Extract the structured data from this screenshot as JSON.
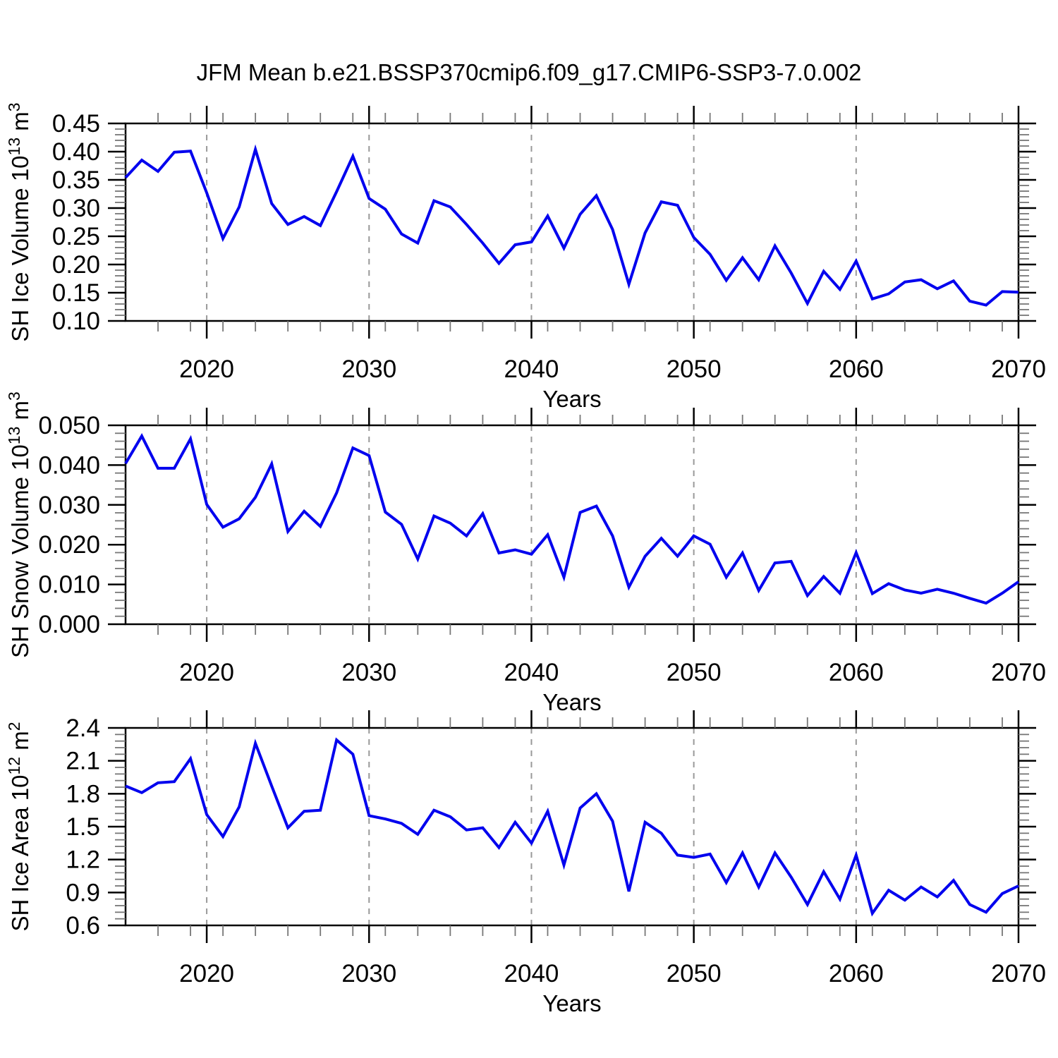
{
  "title": "JFM Mean b.e21.BSSP370cmip6.f09_g17.CMIP6-SSP3-7.0.002",
  "colors": {
    "line": "#0202ee",
    "axis": "#000000",
    "grid": "#999999",
    "minor_tick": "#777777",
    "text": "#000000",
    "background": "#ffffff"
  },
  "chart_data": [
    {
      "type": "line",
      "panel": "sh-ice-volume",
      "ylabel_parts": [
        {
          "text": "SH Ice Volume 10",
          "sup": false
        },
        {
          "text": "13",
          "sup": true
        },
        {
          "text": " m",
          "sup": false
        },
        {
          "text": "3",
          "sup": true
        }
      ],
      "xlabel": "Years",
      "xlim": [
        2015,
        2070
      ],
      "ylim": [
        0.1,
        0.45
      ],
      "xticks": [
        2020,
        2030,
        2040,
        2050,
        2060,
        2070
      ],
      "xtick_labels": [
        "2020",
        "2030",
        "2040",
        "2050",
        "2060",
        "2070"
      ],
      "minor_x_step": 2,
      "yticks": [
        0.45,
        0.4,
        0.35,
        0.3,
        0.25,
        0.2,
        0.15,
        0.1
      ],
      "ytick_labels": [
        "0.45",
        "0.40",
        "0.35",
        "0.30",
        "0.25",
        "0.20",
        "0.15",
        "0.10"
      ],
      "minor_y_step": 0.01,
      "grid_x": [
        2020,
        2030,
        2040,
        2050,
        2060
      ],
      "x": [
        2015,
        2016,
        2017,
        2018,
        2019,
        2020,
        2021,
        2022,
        2023,
        2024,
        2025,
        2026,
        2027,
        2028,
        2029,
        2030,
        2031,
        2032,
        2033,
        2034,
        2035,
        2036,
        2037,
        2038,
        2039,
        2040,
        2041,
        2042,
        2043,
        2044,
        2045,
        2046,
        2047,
        2048,
        2049,
        2050,
        2051,
        2052,
        2053,
        2054,
        2055,
        2056,
        2057,
        2058,
        2059,
        2060,
        2061,
        2062,
        2063,
        2064,
        2065,
        2066,
        2067,
        2068,
        2069,
        2070
      ],
      "values": [
        0.354,
        0.385,
        0.365,
        0.399,
        0.401,
        0.327,
        0.246,
        0.302,
        0.404,
        0.308,
        0.271,
        0.285,
        0.269,
        0.329,
        0.392,
        0.317,
        0.298,
        0.254,
        0.238,
        0.313,
        0.302,
        0.271,
        0.238,
        0.202,
        0.235,
        0.24,
        0.286,
        0.229,
        0.289,
        0.322,
        0.262,
        0.165,
        0.256,
        0.311,
        0.305,
        0.248,
        0.218,
        0.172,
        0.212,
        0.173,
        0.233,
        0.185,
        0.131,
        0.188,
        0.156,
        0.206,
        0.139,
        0.148,
        0.169,
        0.173,
        0.157,
        0.171,
        0.135,
        0.128,
        0.152,
        0.151
      ]
    },
    {
      "type": "line",
      "panel": "sh-snow-volume",
      "ylabel_parts": [
        {
          "text": "SH Snow Volume 10",
          "sup": false
        },
        {
          "text": "13",
          "sup": true
        },
        {
          "text": " m",
          "sup": false
        },
        {
          "text": "3",
          "sup": true
        }
      ],
      "xlabel": "Years",
      "xlim": [
        2015,
        2070
      ],
      "ylim": [
        0.0,
        0.05
      ],
      "xticks": [
        2020,
        2030,
        2040,
        2050,
        2060,
        2070
      ],
      "xtick_labels": [
        "2020",
        "2030",
        "2040",
        "2050",
        "2060",
        "2070"
      ],
      "minor_x_step": 2,
      "yticks": [
        0.05,
        0.04,
        0.03,
        0.02,
        0.01,
        0.0
      ],
      "ytick_labels": [
        "0.050",
        "0.040",
        "0.030",
        "0.020",
        "0.010",
        "0.000"
      ],
      "minor_y_step": 0.002,
      "grid_x": [
        2020,
        2030,
        2040,
        2050,
        2060
      ],
      "x": [
        2015,
        2016,
        2017,
        2018,
        2019,
        2020,
        2021,
        2022,
        2023,
        2024,
        2025,
        2026,
        2027,
        2028,
        2029,
        2030,
        2031,
        2032,
        2033,
        2034,
        2035,
        2036,
        2037,
        2038,
        2039,
        2040,
        2041,
        2042,
        2043,
        2044,
        2045,
        2046,
        2047,
        2048,
        2049,
        2050,
        2051,
        2052,
        2053,
        2054,
        2055,
        2056,
        2057,
        2058,
        2059,
        2060,
        2061,
        2062,
        2063,
        2064,
        2065,
        2066,
        2067,
        2068,
        2069,
        2070
      ],
      "values": [
        0.0404,
        0.0473,
        0.0392,
        0.0392,
        0.0466,
        0.0301,
        0.0244,
        0.0265,
        0.0319,
        0.0403,
        0.0233,
        0.0284,
        0.0246,
        0.033,
        0.0443,
        0.0424,
        0.0282,
        0.0251,
        0.0164,
        0.0272,
        0.0254,
        0.0222,
        0.0278,
        0.0179,
        0.0187,
        0.0176,
        0.0225,
        0.0118,
        0.0281,
        0.0297,
        0.0222,
        0.0093,
        0.0171,
        0.0216,
        0.0171,
        0.0222,
        0.0201,
        0.0118,
        0.0179,
        0.0085,
        0.0154,
        0.0158,
        0.0072,
        0.012,
        0.0078,
        0.018,
        0.0077,
        0.0102,
        0.0086,
        0.0078,
        0.0088,
        0.0078,
        0.0065,
        0.0053,
        0.0078,
        0.0107
      ]
    },
    {
      "type": "line",
      "panel": "sh-ice-area",
      "ylabel_parts": [
        {
          "text": "SH Ice Area 10",
          "sup": false
        },
        {
          "text": "12",
          "sup": true
        },
        {
          "text": " m",
          "sup": false
        },
        {
          "text": "2",
          "sup": true
        }
      ],
      "xlabel": "Years",
      "xlim": [
        2015,
        2070
      ],
      "ylim": [
        0.6,
        2.4
      ],
      "xticks": [
        2020,
        2030,
        2040,
        2050,
        2060,
        2070
      ],
      "xtick_labels": [
        "2020",
        "2030",
        "2040",
        "2050",
        "2060",
        "2070"
      ],
      "minor_x_step": 2,
      "yticks": [
        2.4,
        2.1,
        1.8,
        1.5,
        1.2,
        0.9,
        0.6
      ],
      "ytick_labels": [
        "2.4",
        "2.1",
        "1.8",
        "1.5",
        "1.2",
        "0.9",
        "0.6"
      ],
      "minor_y_step": 0.06,
      "grid_x": [
        2020,
        2030,
        2040,
        2050,
        2060
      ],
      "x": [
        2015,
        2016,
        2017,
        2018,
        2019,
        2020,
        2021,
        2022,
        2023,
        2024,
        2025,
        2026,
        2027,
        2028,
        2029,
        2030,
        2031,
        2032,
        2033,
        2034,
        2035,
        2036,
        2037,
        2038,
        2039,
        2040,
        2041,
        2042,
        2043,
        2044,
        2045,
        2046,
        2047,
        2048,
        2049,
        2050,
        2051,
        2052,
        2053,
        2054,
        2055,
        2056,
        2057,
        2058,
        2059,
        2060,
        2061,
        2062,
        2063,
        2064,
        2065,
        2066,
        2067,
        2068,
        2069,
        2070
      ],
      "values": [
        1.87,
        1.81,
        1.9,
        1.91,
        2.12,
        1.61,
        1.41,
        1.68,
        2.26,
        1.87,
        1.49,
        1.64,
        1.65,
        2.29,
        2.16,
        1.6,
        1.57,
        1.53,
        1.43,
        1.65,
        1.59,
        1.47,
        1.49,
        1.31,
        1.54,
        1.35,
        1.64,
        1.15,
        1.67,
        1.8,
        1.55,
        0.91,
        1.54,
        1.44,
        1.24,
        1.22,
        1.25,
        0.99,
        1.26,
        0.95,
        1.26,
        1.04,
        0.79,
        1.09,
        0.84,
        1.24,
        0.71,
        0.92,
        0.83,
        0.95,
        0.86,
        1.01,
        0.79,
        0.72,
        0.89,
        0.96
      ]
    }
  ]
}
